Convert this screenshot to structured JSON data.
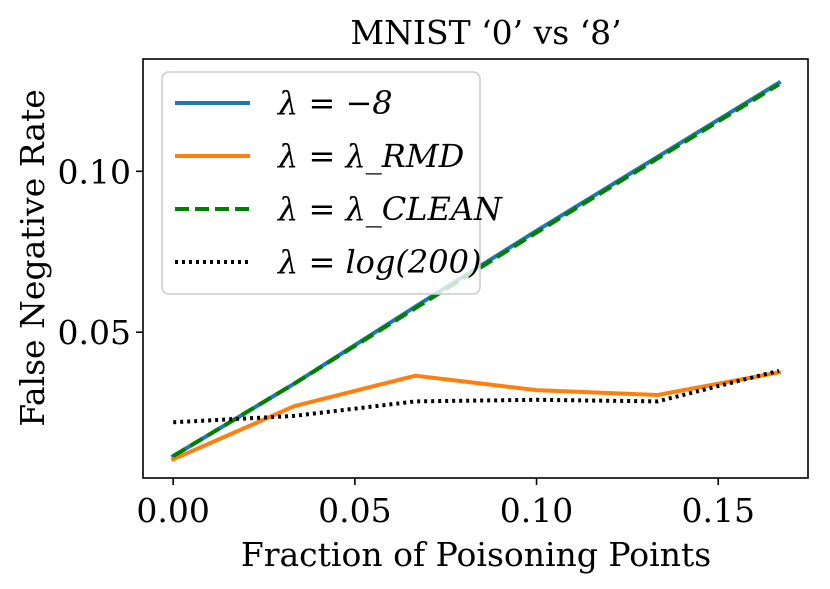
{
  "chart_data": {
    "type": "line",
    "title": "MNIST ‘0’ vs ‘8’",
    "xlabel": "Fraction of Poisoning Points",
    "ylabel": "False Negative Rate",
    "xlim": [
      -0.0083,
      0.1747
    ],
    "ylim": [
      0.0047,
      0.1349
    ],
    "xticks": [
      0.0,
      0.05,
      0.1,
      0.15
    ],
    "xtick_labels": [
      "0.00",
      "0.05",
      "0.10",
      "0.15"
    ],
    "yticks": [
      0.05,
      0.1
    ],
    "ytick_labels": [
      "0.05",
      "0.10"
    ],
    "grid": false,
    "legend_position": "top-left",
    "x": [
      0.0,
      0.0333,
      0.0667,
      0.1,
      0.1333,
      0.1667
    ],
    "series": [
      {
        "name": "λ = −8",
        "color": "#1f77b4",
        "style": "solid",
        "values": [
          0.0115,
          0.034,
          0.058,
          0.0815,
          0.1045,
          0.1275
        ]
      },
      {
        "name": "λ = λ_RMD",
        "color": "#ff7f0e",
        "style": "solid",
        "values": [
          0.0105,
          0.027,
          0.0365,
          0.032,
          0.0305,
          0.0375
        ]
      },
      {
        "name": "λ = λ_CLEAN",
        "color": "#008000",
        "style": "dashed",
        "values": [
          0.0115,
          0.034,
          0.0575,
          0.081,
          0.104,
          0.127
        ]
      },
      {
        "name": "λ = log(200)",
        "color": "#000000",
        "style": "dotted",
        "values": [
          0.022,
          0.024,
          0.0285,
          0.029,
          0.0285,
          0.038
        ]
      }
    ]
  }
}
